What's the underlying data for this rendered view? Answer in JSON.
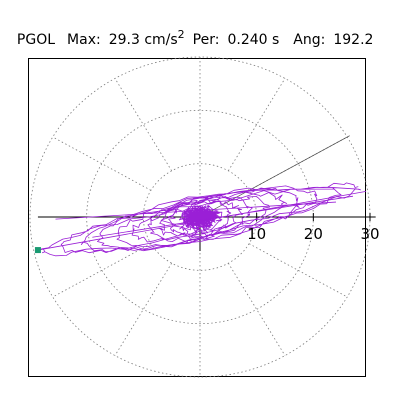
{
  "header": {
    "station": "PGOL",
    "max_label": "Max:",
    "max_value": "29.3 cm/s",
    "max_exponent": "2",
    "per_label": "Per:",
    "per_value": "0.240 s",
    "ang_label": "Ang:",
    "ang_value": "192.2"
  },
  "colors": {
    "trace": "#9a1fd6",
    "marker": "#1a9a72",
    "grid": "#7a7a7a",
    "axis": "#000000",
    "frame": "#000000",
    "background": "#ffffff"
  },
  "chart_data": {
    "type": "polar-particle-motion",
    "title": "PGOL",
    "units": "cm/s^2",
    "max_amplitude": 29.3,
    "period_s": 0.24,
    "angle_deg": 192.2,
    "x_ticks": [
      10,
      20,
      30
    ],
    "x_tick_labels": [
      "10",
      "20",
      "30"
    ],
    "rlim": [
      0,
      30
    ],
    "grid_rings": [
      10,
      20,
      30
    ],
    "grid_spoke_step_deg": 30,
    "max_direction_deg": 192.2,
    "reference_line_deg": 30,
    "marker": {
      "x": -28.6,
      "y": -6.2,
      "label": ""
    },
    "orbit": {
      "x_range": [
        -28.6,
        29.3
      ],
      "y_range": [
        -6.8,
        4.8
      ],
      "dominant_direction_deg": 12.2,
      "loops": [
        {
          "a": 28.6,
          "b": 2.6,
          "phase": 0.0
        },
        {
          "a": 25.0,
          "b": 3.4,
          "phase": 0.3
        },
        {
          "a": 21.0,
          "b": 3.8,
          "phase": 0.7
        },
        {
          "a": 18.0,
          "b": 4.2,
          "phase": 1.1
        },
        {
          "a": 15.0,
          "b": 3.6,
          "phase": 1.5
        },
        {
          "a": 12.0,
          "b": 3.2,
          "phase": 1.9
        },
        {
          "a": 9.0,
          "b": 3.6,
          "phase": 2.3
        },
        {
          "a": 7.0,
          "b": 2.8,
          "phase": 2.7
        },
        {
          "a": 5.0,
          "b": 3.4,
          "phase": 3.1
        },
        {
          "a": 3.5,
          "b": 2.4,
          "phase": 3.5
        },
        {
          "a": 2.5,
          "b": 2.0,
          "phase": 3.9
        },
        {
          "a": 2.0,
          "b": 1.6,
          "phase": 4.3
        }
      ]
    }
  }
}
